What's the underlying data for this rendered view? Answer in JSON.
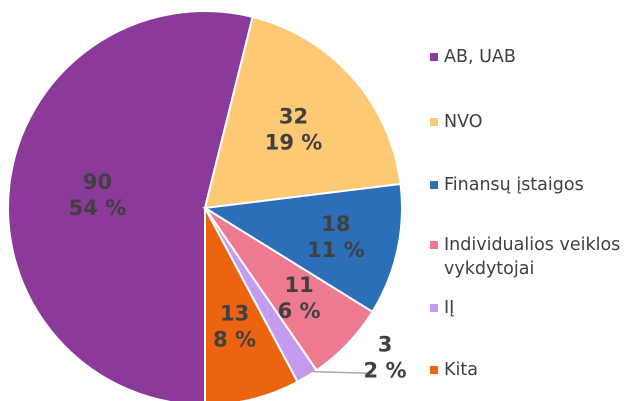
{
  "chart_data": {
    "type": "pie",
    "categories": [
      "AB, UAB",
      "NVO",
      "Finansų įstaigos",
      "Individualios veiklos vykdytojai",
      "IĮ",
      "Kita"
    ],
    "values": [
      90,
      32,
      18,
      11,
      3,
      13
    ],
    "percent_labels": [
      "54 %",
      "19 %",
      "11 %",
      "6 %",
      "2 %",
      "8 %"
    ],
    "colors": [
      "#8b3a9a",
      "#fdc975",
      "#2a6fb8",
      "#ee7a92",
      "#c59bf0",
      "#ec6310"
    ],
    "legend": "right"
  }
}
